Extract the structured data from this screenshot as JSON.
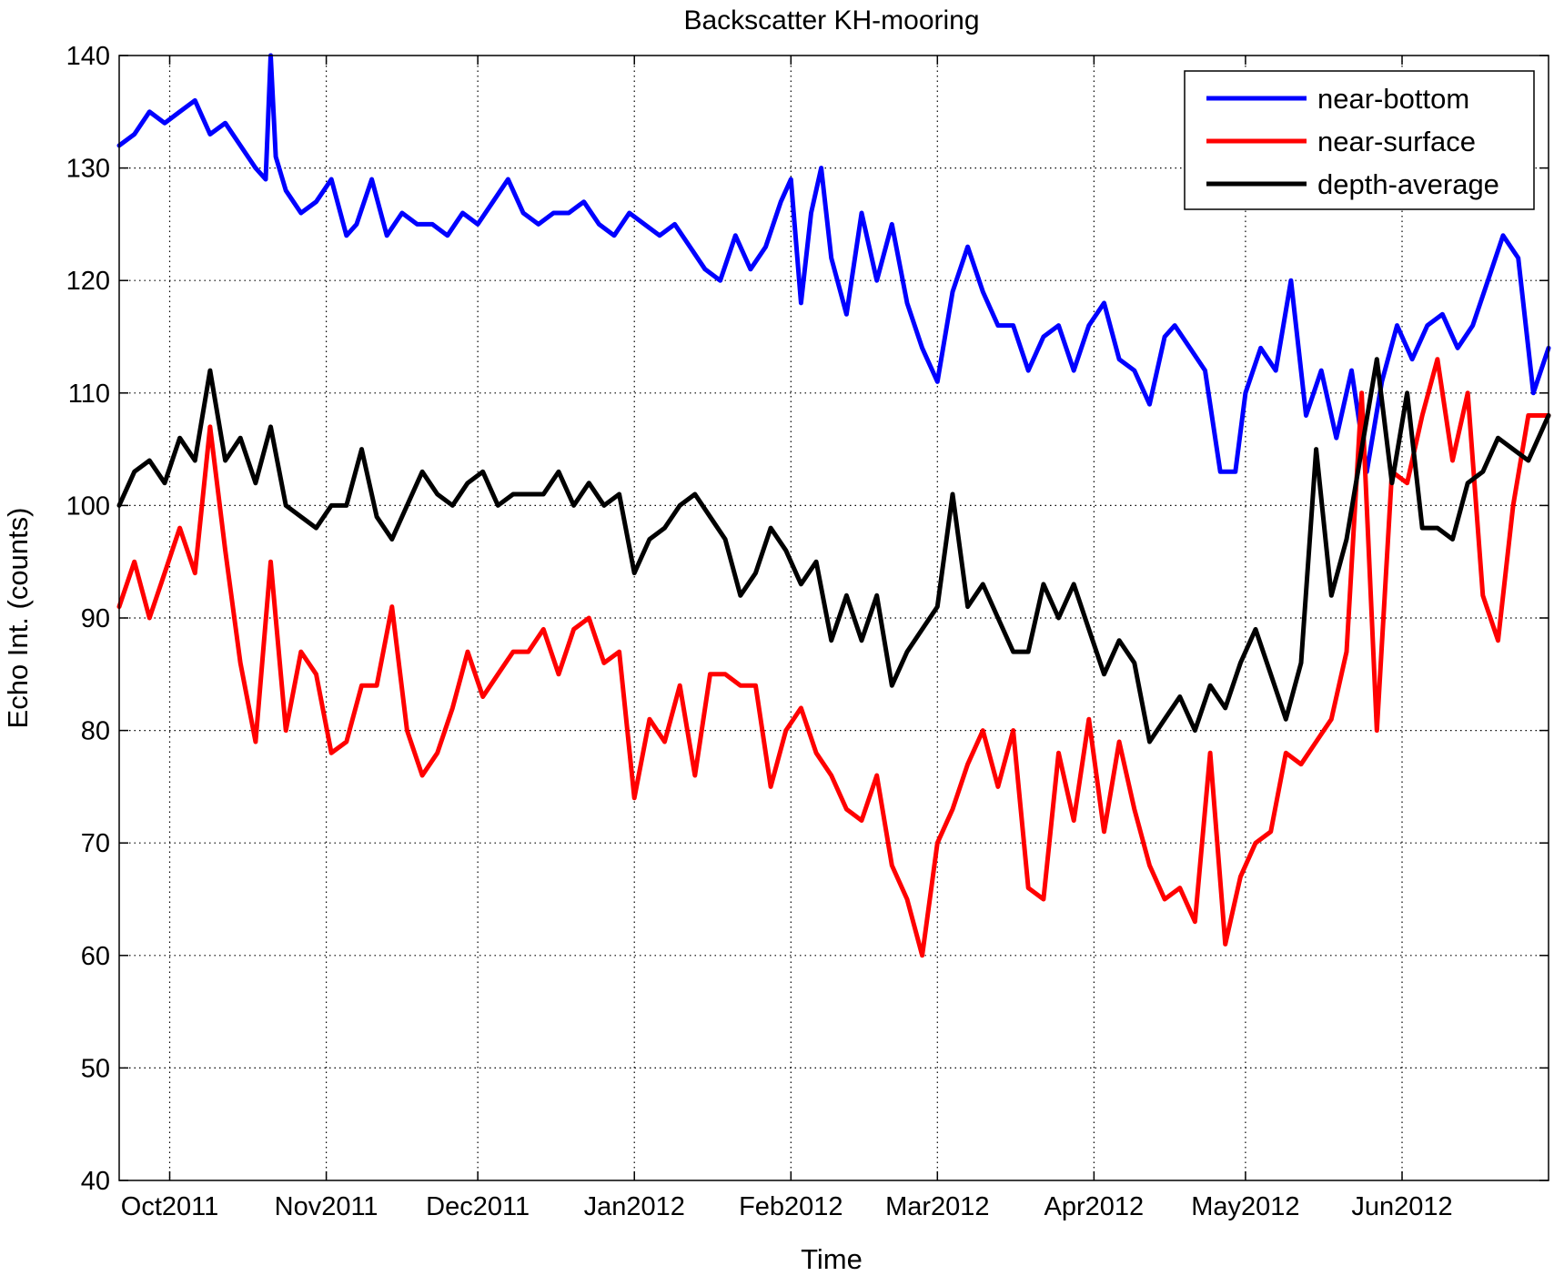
{
  "chart_data": {
    "type": "line",
    "title": "Backscatter KH-mooring",
    "xlabel": "Time",
    "ylabel": "Echo Int. (counts)",
    "ylim": [
      40,
      140
    ],
    "yticks": [
      40,
      50,
      60,
      70,
      80,
      90,
      100,
      110,
      120,
      130,
      140
    ],
    "xlim": [
      "2011-09-21",
      "2012-06-30"
    ],
    "xticks": [
      {
        "date": "2011-10-01",
        "label": "Oct2011"
      },
      {
        "date": "2011-11-01",
        "label": "Nov2011"
      },
      {
        "date": "2011-12-01",
        "label": "Dec2011"
      },
      {
        "date": "2012-01-01",
        "label": "Jan2012"
      },
      {
        "date": "2012-02-01",
        "label": "Feb2012"
      },
      {
        "date": "2012-03-01",
        "label": "Mar2012"
      },
      {
        "date": "2012-04-01",
        "label": "Apr2012"
      },
      {
        "date": "2012-05-01",
        "label": "May2012"
      },
      {
        "date": "2012-06-01",
        "label": "Jun2012"
      }
    ],
    "grid": true,
    "legend_position": "top-right",
    "series": [
      {
        "name": "near-bottom",
        "color": "#0000ff",
        "x": [
          "2011-09-21",
          "2011-09-24",
          "2011-09-27",
          "2011-09-30",
          "2011-10-03",
          "2011-10-06",
          "2011-10-09",
          "2011-10-12",
          "2011-10-15",
          "2011-10-18",
          "2011-10-20",
          "2011-10-21",
          "2011-10-22",
          "2011-10-24",
          "2011-10-27",
          "2011-10-30",
          "2011-11-02",
          "2011-11-05",
          "2011-11-07",
          "2011-11-10",
          "2011-11-13",
          "2011-11-16",
          "2011-11-19",
          "2011-11-22",
          "2011-11-25",
          "2011-11-28",
          "2011-12-01",
          "2011-12-04",
          "2011-12-07",
          "2011-12-10",
          "2011-12-13",
          "2011-12-16",
          "2011-12-19",
          "2011-12-22",
          "2011-12-25",
          "2011-12-28",
          "2011-12-31",
          "2012-01-03",
          "2012-01-06",
          "2012-01-09",
          "2012-01-12",
          "2012-01-15",
          "2012-01-18",
          "2012-01-21",
          "2012-01-24",
          "2012-01-27",
          "2012-01-30",
          "2012-02-01",
          "2012-02-03",
          "2012-02-05",
          "2012-02-07",
          "2012-02-09",
          "2012-02-12",
          "2012-02-15",
          "2012-02-18",
          "2012-02-21",
          "2012-02-24",
          "2012-02-27",
          "2012-03-01",
          "2012-03-04",
          "2012-03-07",
          "2012-03-10",
          "2012-03-13",
          "2012-03-16",
          "2012-03-19",
          "2012-03-22",
          "2012-03-25",
          "2012-03-28",
          "2012-03-31",
          "2012-04-03",
          "2012-04-06",
          "2012-04-09",
          "2012-04-12",
          "2012-04-15",
          "2012-04-17",
          "2012-04-20",
          "2012-04-23",
          "2012-04-26",
          "2012-04-29",
          "2012-05-01",
          "2012-05-04",
          "2012-05-07",
          "2012-05-10",
          "2012-05-13",
          "2012-05-16",
          "2012-05-19",
          "2012-05-22",
          "2012-05-25",
          "2012-05-28",
          "2012-05-31",
          "2012-06-03",
          "2012-06-06",
          "2012-06-09",
          "2012-06-12",
          "2012-06-15",
          "2012-06-18",
          "2012-06-21",
          "2012-06-24",
          "2012-06-27",
          "2012-06-30"
        ],
        "values": [
          132,
          133,
          135,
          134,
          135,
          136,
          133,
          134,
          132,
          130,
          129,
          140,
          131,
          128,
          126,
          127,
          129,
          124,
          125,
          129,
          124,
          126,
          125,
          125,
          124,
          126,
          125,
          127,
          129,
          126,
          125,
          126,
          126,
          127,
          125,
          124,
          126,
          125,
          124,
          125,
          123,
          121,
          120,
          124,
          121,
          123,
          127,
          129,
          118,
          126,
          130,
          122,
          117,
          126,
          120,
          125,
          118,
          114,
          111,
          119,
          123,
          119,
          116,
          116,
          112,
          115,
          116,
          112,
          116,
          118,
          113,
          112,
          109,
          115,
          116,
          114,
          112,
          103,
          103,
          110,
          114,
          112,
          120,
          108,
          112,
          106,
          112,
          103,
          111,
          116,
          113,
          116,
          117,
          114,
          116,
          120,
          124,
          122,
          110,
          114
        ]
      },
      {
        "name": "near-surface",
        "color": "#ff0000",
        "x": [
          "2011-09-21",
          "2011-09-24",
          "2011-09-27",
          "2011-09-30",
          "2011-10-03",
          "2011-10-06",
          "2011-10-09",
          "2011-10-12",
          "2011-10-15",
          "2011-10-18",
          "2011-10-21",
          "2011-10-24",
          "2011-10-27",
          "2011-10-30",
          "2011-11-02",
          "2011-11-05",
          "2011-11-08",
          "2011-11-11",
          "2011-11-14",
          "2011-11-17",
          "2011-11-20",
          "2011-11-23",
          "2011-11-26",
          "2011-11-29",
          "2011-12-02",
          "2011-12-05",
          "2011-12-08",
          "2011-12-11",
          "2011-12-14",
          "2011-12-17",
          "2011-12-20",
          "2011-12-23",
          "2011-12-26",
          "2011-12-29",
          "2012-01-01",
          "2012-01-04",
          "2012-01-07",
          "2012-01-10",
          "2012-01-13",
          "2012-01-16",
          "2012-01-19",
          "2012-01-22",
          "2012-01-25",
          "2012-01-28",
          "2012-01-31",
          "2012-02-03",
          "2012-02-06",
          "2012-02-09",
          "2012-02-12",
          "2012-02-15",
          "2012-02-18",
          "2012-02-21",
          "2012-02-24",
          "2012-02-27",
          "2012-03-01",
          "2012-03-04",
          "2012-03-07",
          "2012-03-10",
          "2012-03-13",
          "2012-03-16",
          "2012-03-19",
          "2012-03-22",
          "2012-03-25",
          "2012-03-28",
          "2012-03-31",
          "2012-04-03",
          "2012-04-06",
          "2012-04-09",
          "2012-04-12",
          "2012-04-15",
          "2012-04-18",
          "2012-04-21",
          "2012-04-24",
          "2012-04-27",
          "2012-04-30",
          "2012-05-03",
          "2012-05-06",
          "2012-05-09",
          "2012-05-12",
          "2012-05-15",
          "2012-05-18",
          "2012-05-21",
          "2012-05-24",
          "2012-05-27",
          "2012-05-30",
          "2012-06-02",
          "2012-06-05",
          "2012-06-08",
          "2012-06-11",
          "2012-06-14",
          "2012-06-17",
          "2012-06-20",
          "2012-06-23",
          "2012-06-26",
          "2012-06-30"
        ],
        "values": [
          91,
          95,
          90,
          94,
          98,
          94,
          107,
          96,
          86,
          79,
          95,
          80,
          87,
          85,
          78,
          79,
          84,
          84,
          91,
          80,
          76,
          78,
          82,
          87,
          83,
          85,
          87,
          87,
          89,
          85,
          89,
          90,
          86,
          87,
          74,
          81,
          79,
          84,
          76,
          85,
          85,
          84,
          84,
          75,
          80,
          82,
          78,
          76,
          73,
          72,
          76,
          68,
          65,
          60,
          70,
          73,
          77,
          80,
          75,
          80,
          66,
          65,
          78,
          72,
          81,
          71,
          79,
          73,
          68,
          65,
          66,
          63,
          78,
          61,
          67,
          70,
          71,
          78,
          77,
          79,
          81,
          87,
          110,
          80,
          103,
          102,
          108,
          113,
          104,
          110,
          92,
          88,
          100,
          108,
          108
        ]
      },
      {
        "name": "depth-average",
        "color": "#000000",
        "x": [
          "2011-09-21",
          "2011-09-24",
          "2011-09-27",
          "2011-09-30",
          "2011-10-03",
          "2011-10-06",
          "2011-10-09",
          "2011-10-12",
          "2011-10-15",
          "2011-10-18",
          "2011-10-21",
          "2011-10-24",
          "2011-10-27",
          "2011-10-30",
          "2011-11-02",
          "2011-11-05",
          "2011-11-08",
          "2011-11-11",
          "2011-11-14",
          "2011-11-17",
          "2011-11-20",
          "2011-11-23",
          "2011-11-26",
          "2011-11-29",
          "2011-12-02",
          "2011-12-05",
          "2011-12-08",
          "2011-12-11",
          "2011-12-14",
          "2011-12-17",
          "2011-12-20",
          "2011-12-23",
          "2011-12-26",
          "2011-12-29",
          "2012-01-01",
          "2012-01-04",
          "2012-01-07",
          "2012-01-10",
          "2012-01-13",
          "2012-01-16",
          "2012-01-19",
          "2012-01-22",
          "2012-01-25",
          "2012-01-28",
          "2012-01-31",
          "2012-02-03",
          "2012-02-06",
          "2012-02-09",
          "2012-02-12",
          "2012-02-15",
          "2012-02-18",
          "2012-02-21",
          "2012-02-24",
          "2012-02-27",
          "2012-03-01",
          "2012-03-04",
          "2012-03-07",
          "2012-03-10",
          "2012-03-13",
          "2012-03-16",
          "2012-03-19",
          "2012-03-22",
          "2012-03-25",
          "2012-03-28",
          "2012-03-31",
          "2012-04-03",
          "2012-04-06",
          "2012-04-09",
          "2012-04-12",
          "2012-04-15",
          "2012-04-18",
          "2012-04-21",
          "2012-04-24",
          "2012-04-27",
          "2012-04-30",
          "2012-05-03",
          "2012-05-06",
          "2012-05-09",
          "2012-05-12",
          "2012-05-15",
          "2012-05-18",
          "2012-05-21",
          "2012-05-24",
          "2012-05-27",
          "2012-05-30",
          "2012-06-02",
          "2012-06-05",
          "2012-06-08",
          "2012-06-11",
          "2012-06-14",
          "2012-06-17",
          "2012-06-20",
          "2012-06-23",
          "2012-06-26",
          "2012-06-30"
        ],
        "values": [
          100,
          103,
          104,
          102,
          106,
          104,
          112,
          104,
          106,
          102,
          107,
          100,
          99,
          98,
          100,
          100,
          105,
          99,
          97,
          100,
          103,
          101,
          100,
          102,
          103,
          100,
          101,
          101,
          101,
          103,
          100,
          102,
          100,
          101,
          94,
          97,
          98,
          100,
          101,
          99,
          97,
          92,
          94,
          98,
          96,
          93,
          95,
          88,
          92,
          88,
          92,
          84,
          87,
          89,
          91,
          101,
          91,
          93,
          90,
          87,
          87,
          93,
          90,
          93,
          89,
          85,
          88,
          86,
          79,
          81,
          83,
          80,
          84,
          82,
          86,
          89,
          85,
          81,
          86,
          105,
          92,
          97,
          105,
          113,
          102,
          110,
          98,
          98,
          97,
          102,
          103,
          106,
          105,
          104,
          108
        ]
      }
    ]
  }
}
